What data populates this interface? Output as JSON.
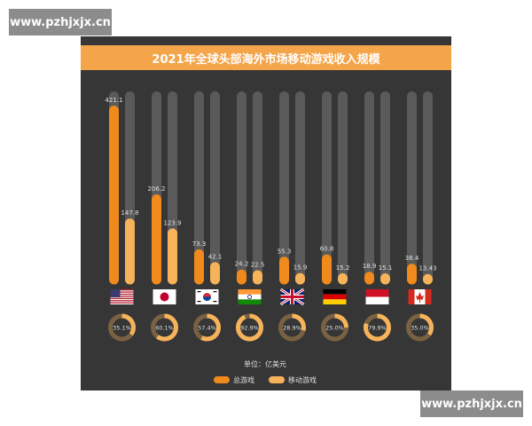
{
  "watermark": {
    "top": "www.pzhjxjx.cn",
    "bottom": "www.pzhjxjx.cn"
  },
  "colors": {
    "background": "#363636",
    "track": "#5a5a5a",
    "total": "#f08a1c",
    "mobile": "#f6b35a",
    "title_bar": "#f4a54a",
    "text": "#e0e0e0"
  },
  "chart_data": {
    "type": "bar",
    "title": "2021年全球头部海外市场移动游戏收入规模",
    "unit": "单位：亿美元",
    "ylim": [
      0,
      421.1
    ],
    "categories": [
      "united-states",
      "japan",
      "south-korea",
      "india",
      "united-kingdom",
      "germany",
      "indonesia",
      "canada"
    ],
    "series": [
      {
        "name": "总游戏",
        "values": [
          421.1,
          206.2,
          73.3,
          24.2,
          55.3,
          60.8,
          18.9,
          38.4
        ],
        "labels": [
          "421.1",
          "206.2",
          "73.3",
          "24.2",
          "55.3",
          "60.8",
          "18.9",
          "38.4"
        ]
      },
      {
        "name": "移动游戏",
        "values": [
          147.8,
          123.9,
          42.1,
          22.5,
          15.9,
          15.2,
          15.1,
          13.43
        ],
        "labels": [
          "147.8",
          "123.9",
          "42.1",
          "22.5",
          "15.9",
          "15.2",
          "15.1",
          "13.43"
        ]
      }
    ],
    "share": {
      "values": [
        35.1,
        60.1,
        57.4,
        92.9,
        28.9,
        25.0,
        79.9,
        35.0
      ],
      "labels": [
        "35.1%",
        "60.1%",
        "57.4%",
        "92.9%",
        "28.9%",
        "25.0%",
        "79.9%",
        "35.0%"
      ]
    },
    "legend": [
      "总游戏",
      "移动游戏"
    ],
    "legend_position": "bottom"
  }
}
